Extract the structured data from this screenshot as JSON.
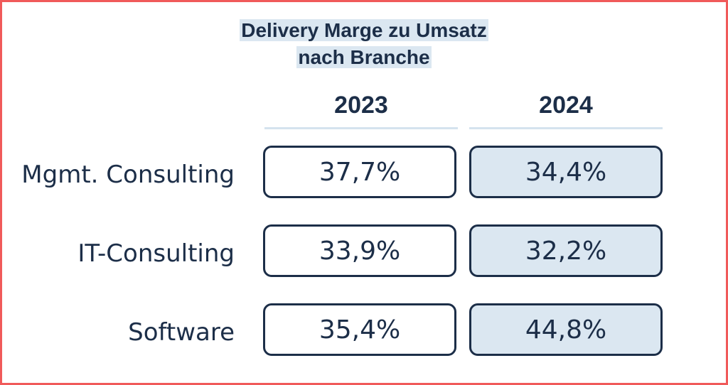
{
  "chart_data": {
    "type": "table",
    "title_line1": "Delivery Marge zu Umsatz",
    "title_line2": "nach Branche",
    "columns": [
      "2023",
      "2024"
    ],
    "rows": [
      {
        "label": "Mgmt. Consulting",
        "values": [
          "37,7%",
          "34,4%"
        ]
      },
      {
        "label": "IT-Consulting",
        "values": [
          "33,9%",
          "32,2%"
        ]
      },
      {
        "label": "Software",
        "values": [
          "35,4%",
          "44,8%"
        ]
      }
    ],
    "colors": {
      "text": "#1c2e48",
      "highlight": "#dbe7f1",
      "frame": "#f05a5a"
    }
  }
}
